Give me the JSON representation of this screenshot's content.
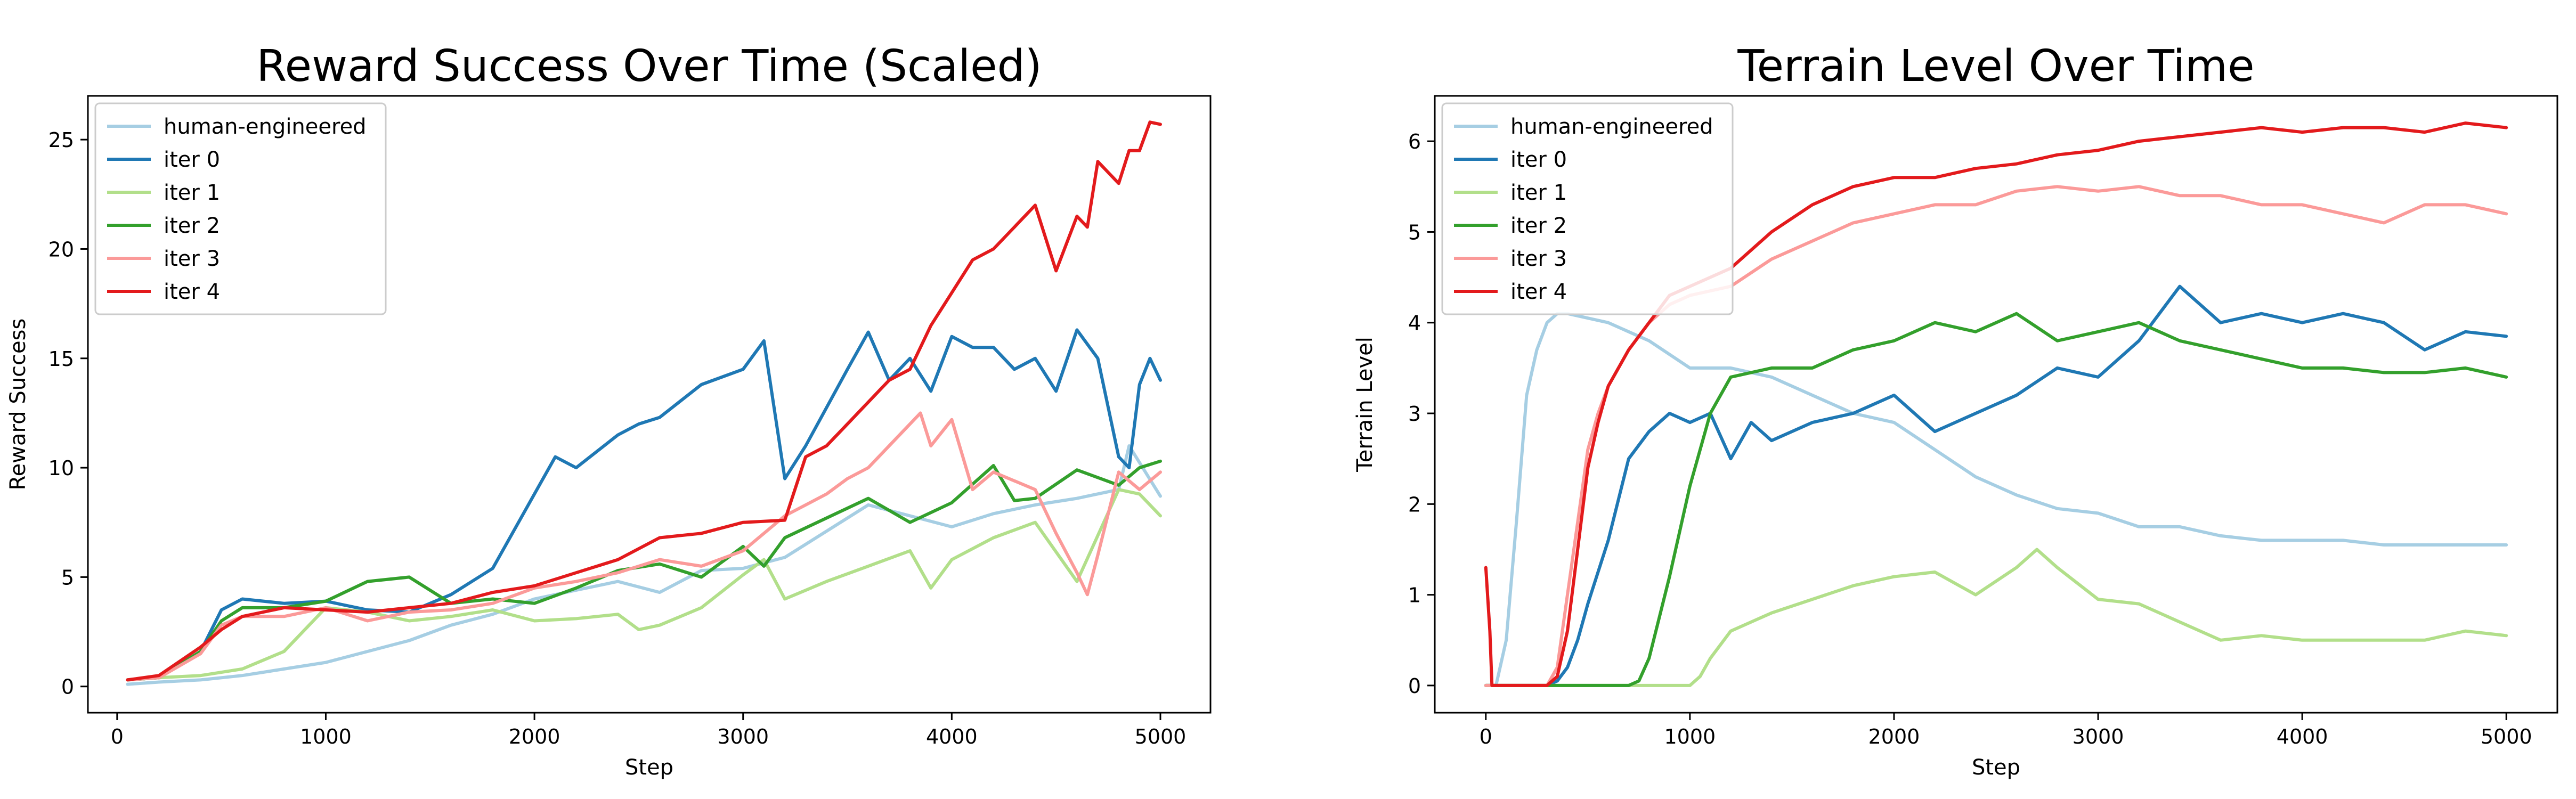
{
  "chart_data": [
    {
      "type": "line",
      "title": "Reward Success Over Time (Scaled)",
      "xlabel": "Step",
      "ylabel": "Reward Success",
      "xlim": [
        -140,
        5240
      ],
      "ylim": [
        -1.2,
        27.0
      ],
      "xticks": [
        0,
        1000,
        2000,
        3000,
        4000,
        5000
      ],
      "yticks": [
        0,
        5,
        10,
        15,
        20,
        25
      ],
      "grid": false,
      "legend_position": "top-left",
      "series": [
        {
          "name": "human-engineered",
          "color": "#a6cee3",
          "x": [
            50,
            200,
            400,
            600,
            800,
            1000,
            1200,
            1400,
            1600,
            1800,
            2000,
            2200,
            2400,
            2600,
            2800,
            3000,
            3200,
            3400,
            3600,
            3800,
            4000,
            4200,
            4400,
            4600,
            4800,
            4850,
            5000
          ],
          "y": [
            0.1,
            0.2,
            0.3,
            0.5,
            0.8,
            1.1,
            1.6,
            2.1,
            2.8,
            3.3,
            4.0,
            4.4,
            4.8,
            4.3,
            5.3,
            5.4,
            5.9,
            7.1,
            8.3,
            7.8,
            7.3,
            7.9,
            8.3,
            8.6,
            9.0,
            11.0,
            8.7
          ]
        },
        {
          "name": "iter 0",
          "color": "#1f78b4",
          "x": [
            50,
            200,
            400,
            500,
            600,
            800,
            1000,
            1200,
            1400,
            1600,
            1800,
            2000,
            2100,
            2200,
            2400,
            2500,
            2600,
            2800,
            3000,
            3100,
            3200,
            3300,
            3500,
            3600,
            3700,
            3800,
            3900,
            4000,
            4100,
            4200,
            4300,
            4400,
            4500,
            4600,
            4700,
            4800,
            4850,
            4900,
            4950,
            5000
          ],
          "y": [
            0.3,
            0.4,
            1.6,
            3.5,
            4.0,
            3.8,
            3.9,
            3.5,
            3.4,
            4.2,
            5.4,
            8.8,
            10.5,
            10.0,
            11.5,
            12.0,
            12.3,
            13.8,
            14.5,
            15.8,
            9.5,
            11.0,
            14.5,
            16.2,
            14.0,
            15.0,
            13.5,
            16.0,
            15.5,
            15.5,
            14.5,
            15.0,
            13.5,
            16.3,
            15.0,
            10.5,
            10.0,
            13.8,
            15.0,
            14.0
          ]
        },
        {
          "name": "iter 1",
          "color": "#b2df8a",
          "x": [
            50,
            200,
            400,
            600,
            800,
            1000,
            1200,
            1400,
            1600,
            1800,
            2000,
            2200,
            2400,
            2500,
            2600,
            2800,
            3000,
            3100,
            3200,
            3400,
            3600,
            3800,
            3900,
            4000,
            4200,
            4400,
            4600,
            4800,
            4900,
            5000
          ],
          "y": [
            0.3,
            0.4,
            0.5,
            0.8,
            1.6,
            3.6,
            3.4,
            3.0,
            3.2,
            3.5,
            3.0,
            3.1,
            3.3,
            2.6,
            2.8,
            3.6,
            5.1,
            5.8,
            4.0,
            4.8,
            5.5,
            6.2,
            4.5,
            5.8,
            6.8,
            7.5,
            4.8,
            9.0,
            8.8,
            7.8
          ]
        },
        {
          "name": "iter 2",
          "color": "#33a02c",
          "x": [
            50,
            200,
            400,
            500,
            600,
            800,
            1000,
            1200,
            1400,
            1600,
            1800,
            2000,
            2200,
            2400,
            2600,
            2800,
            3000,
            3100,
            3200,
            3400,
            3600,
            3800,
            4000,
            4200,
            4300,
            4400,
            4600,
            4800,
            4900,
            5000
          ],
          "y": [
            0.3,
            0.4,
            1.6,
            3.0,
            3.6,
            3.6,
            3.9,
            4.8,
            5.0,
            3.8,
            4.0,
            3.8,
            4.5,
            5.3,
            5.6,
            5.0,
            6.4,
            5.5,
            6.8,
            7.7,
            8.6,
            7.5,
            8.4,
            10.1,
            8.5,
            8.6,
            9.9,
            9.2,
            10.0,
            10.3
          ]
        },
        {
          "name": "iter 3",
          "color": "#fb9a99",
          "x": [
            50,
            200,
            400,
            500,
            600,
            800,
            1000,
            1200,
            1400,
            1600,
            1800,
            2000,
            2200,
            2400,
            2600,
            2800,
            3000,
            3200,
            3400,
            3500,
            3600,
            3700,
            3800,
            3850,
            3900,
            4000,
            4100,
            4200,
            4400,
            4500,
            4600,
            4650,
            4700,
            4800,
            4900,
            5000
          ],
          "y": [
            0.3,
            0.4,
            1.5,
            2.8,
            3.2,
            3.2,
            3.6,
            3.0,
            3.4,
            3.5,
            3.8,
            4.5,
            4.8,
            5.2,
            5.8,
            5.5,
            6.2,
            7.8,
            8.8,
            9.5,
            10.0,
            11.0,
            12.0,
            12.5,
            11.0,
            12.2,
            9.0,
            9.8,
            9.0,
            7.0,
            5.2,
            4.2,
            6.0,
            9.8,
            9.0,
            9.8
          ]
        },
        {
          "name": "iter 4",
          "color": "#e31a1c",
          "x": [
            50,
            200,
            400,
            500,
            600,
            800,
            1000,
            1200,
            1400,
            1600,
            1800,
            2000,
            2200,
            2400,
            2600,
            2800,
            3000,
            3200,
            3300,
            3400,
            3500,
            3600,
            3700,
            3800,
            3900,
            4000,
            4100,
            4200,
            4300,
            4400,
            4500,
            4600,
            4650,
            4700,
            4800,
            4850,
            4900,
            4950,
            5000
          ],
          "y": [
            0.3,
            0.5,
            1.8,
            2.6,
            3.2,
            3.6,
            3.5,
            3.4,
            3.6,
            3.8,
            4.3,
            4.6,
            5.2,
            5.8,
            6.8,
            7.0,
            7.5,
            7.6,
            10.5,
            11.0,
            12.0,
            13.0,
            14.0,
            14.5,
            16.5,
            18.0,
            19.5,
            20.0,
            21.0,
            22.0,
            19.0,
            21.5,
            21.0,
            24.0,
            23.0,
            24.5,
            24.5,
            25.8,
            25.7
          ]
        }
      ]
    },
    {
      "type": "line",
      "title": "Terrain Level Over Time",
      "xlabel": "Step",
      "ylabel": "Terrain Level",
      "xlim": [
        -250,
        5250
      ],
      "ylim": [
        -0.3,
        6.5
      ],
      "xticks": [
        0,
        1000,
        2000,
        3000,
        4000,
        5000
      ],
      "yticks": [
        0,
        1,
        2,
        3,
        4,
        5,
        6
      ],
      "grid": false,
      "legend_position": "top-left",
      "series": [
        {
          "name": "human-engineered",
          "color": "#a6cee3",
          "x": [
            0,
            30,
            50,
            100,
            150,
            200,
            250,
            300,
            350,
            400,
            500,
            600,
            800,
            1000,
            1200,
            1400,
            1600,
            1800,
            2000,
            2200,
            2400,
            2600,
            2800,
            3000,
            3200,
            3400,
            3600,
            3800,
            4000,
            4200,
            4400,
            4600,
            4800,
            5000
          ],
          "y": [
            0,
            0,
            0,
            0.5,
            1.8,
            3.2,
            3.7,
            4.0,
            4.1,
            4.1,
            4.05,
            4.0,
            3.8,
            3.5,
            3.5,
            3.4,
            3.2,
            3.0,
            2.9,
            2.6,
            2.3,
            2.1,
            1.95,
            1.9,
            1.75,
            1.75,
            1.65,
            1.6,
            1.6,
            1.6,
            1.55,
            1.55,
            1.55,
            1.55
          ]
        },
        {
          "name": "iter 0",
          "color": "#1f78b4",
          "x": [
            0,
            300,
            350,
            400,
            450,
            500,
            600,
            700,
            800,
            900,
            1000,
            1100,
            1200,
            1300,
            1400,
            1600,
            1800,
            2000,
            2200,
            2400,
            2600,
            2800,
            3000,
            3200,
            3300,
            3400,
            3600,
            3800,
            4000,
            4200,
            4400,
            4600,
            4800,
            5000
          ],
          "y": [
            0,
            0,
            0.05,
            0.2,
            0.5,
            0.9,
            1.6,
            2.5,
            2.8,
            3.0,
            2.9,
            3.0,
            2.5,
            2.9,
            2.7,
            2.9,
            3.0,
            3.2,
            2.8,
            3.0,
            3.2,
            3.5,
            3.4,
            3.8,
            4.1,
            4.4,
            4.0,
            4.1,
            4.0,
            4.1,
            4.0,
            3.7,
            3.9,
            3.85
          ]
        },
        {
          "name": "iter 1",
          "color": "#b2df8a",
          "x": [
            0,
            1000,
            1050,
            1100,
            1200,
            1400,
            1600,
            1800,
            2000,
            2200,
            2400,
            2600,
            2700,
            2800,
            3000,
            3200,
            3400,
            3600,
            3800,
            4000,
            4200,
            4400,
            4600,
            4800,
            5000
          ],
          "y": [
            0,
            0,
            0.1,
            0.3,
            0.6,
            0.8,
            0.95,
            1.1,
            1.2,
            1.25,
            1.0,
            1.3,
            1.5,
            1.3,
            0.95,
            0.9,
            0.7,
            0.5,
            0.55,
            0.5,
            0.5,
            0.5,
            0.5,
            0.6,
            0.55
          ]
        },
        {
          "name": "iter 2",
          "color": "#33a02c",
          "x": [
            0,
            700,
            750,
            800,
            900,
            1000,
            1100,
            1200,
            1400,
            1600,
            1800,
            2000,
            2200,
            2400,
            2600,
            2800,
            3000,
            3200,
            3400,
            3600,
            3800,
            4000,
            4200,
            4400,
            4600,
            4800,
            5000
          ],
          "y": [
            0,
            0,
            0.05,
            0.3,
            1.2,
            2.2,
            3.0,
            3.4,
            3.5,
            3.5,
            3.7,
            3.8,
            4.0,
            3.9,
            4.1,
            3.8,
            3.9,
            4.0,
            3.8,
            3.7,
            3.6,
            3.5,
            3.5,
            3.45,
            3.45,
            3.5,
            3.4
          ]
        },
        {
          "name": "iter 3",
          "color": "#fb9a99",
          "x": [
            0,
            300,
            350,
            400,
            450,
            500,
            550,
            600,
            700,
            800,
            900,
            1000,
            1200,
            1400,
            1600,
            1800,
            2000,
            2200,
            2400,
            2600,
            2800,
            3000,
            3200,
            3400,
            3600,
            3800,
            4000,
            4200,
            4400,
            4600,
            4800,
            5000
          ],
          "y": [
            0,
            0,
            0.2,
            1.0,
            1.8,
            2.6,
            3.0,
            3.3,
            3.7,
            4.0,
            4.2,
            4.3,
            4.4,
            4.7,
            4.9,
            5.1,
            5.2,
            5.3,
            5.3,
            5.45,
            5.5,
            5.45,
            5.5,
            5.4,
            5.4,
            5.3,
            5.3,
            5.2,
            5.1,
            5.3,
            5.3,
            5.2
          ]
        },
        {
          "name": "iter 4",
          "color": "#e31a1c",
          "x": [
            0,
            20,
            30,
            50,
            300,
            350,
            400,
            450,
            500,
            550,
            600,
            700,
            800,
            900,
            1000,
            1200,
            1400,
            1600,
            1800,
            2000,
            2200,
            2400,
            2600,
            2800,
            3000,
            3200,
            3400,
            3600,
            3800,
            4000,
            4200,
            4400,
            4600,
            4800,
            5000
          ],
          "y": [
            1.3,
            0.6,
            0,
            0,
            0,
            0.1,
            0.6,
            1.5,
            2.4,
            2.9,
            3.3,
            3.7,
            4.0,
            4.3,
            4.4,
            4.6,
            5.0,
            5.3,
            5.5,
            5.6,
            5.6,
            5.7,
            5.75,
            5.85,
            5.9,
            6.0,
            6.05,
            6.1,
            6.15,
            6.1,
            6.15,
            6.15,
            6.1,
            6.2,
            6.15
          ]
        }
      ]
    }
  ]
}
